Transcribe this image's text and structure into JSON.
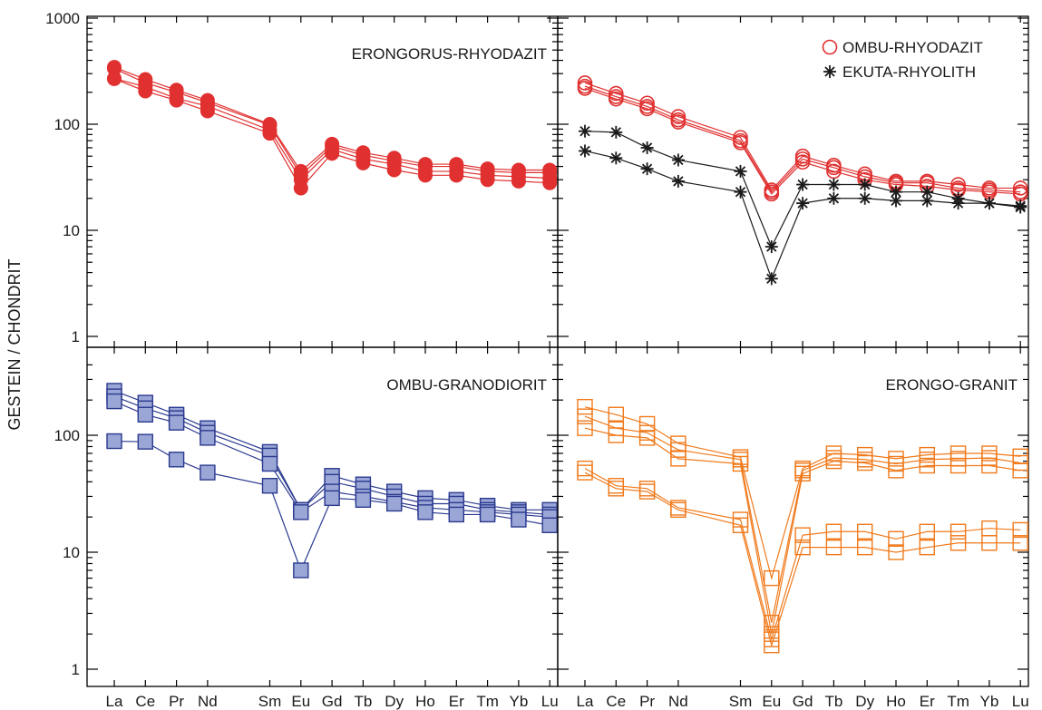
{
  "chart_data": {
    "type": "line",
    "y_axis_label": "GESTEIN / CHONDRIT",
    "y_scale": "log",
    "x_categories": [
      "La",
      "Ce",
      "Pr",
      "Nd",
      "Sm",
      "Eu",
      "Gd",
      "Tb",
      "Dy",
      "Ho",
      "Er",
      "Tm",
      "Yb",
      "Lu"
    ],
    "x_positions": [
      1,
      2,
      3,
      4,
      6,
      7,
      8,
      9,
      10,
      11,
      12,
      13,
      14,
      15
    ],
    "panels": [
      {
        "id": "top-left",
        "title": "ERONGORUS-RHYODAZIT",
        "ylim": [
          0.8,
          1000
        ],
        "y_tick_labels": [
          "1000",
          "100",
          "10",
          "1"
        ],
        "y_tick_values": [
          1000,
          100,
          10,
          1
        ],
        "legend": [],
        "series": [
          {
            "group": "erongorus",
            "values": [
              345,
              265,
              210,
              168,
              100,
              36,
              65,
              54,
              48,
              42,
              42,
              38,
              37,
              37
            ]
          },
          {
            "group": "erongorus",
            "values": [
              335,
              245,
              200,
              160,
              98,
              33,
              62,
              51,
              45,
              40,
              40,
              36,
              35,
              35
            ]
          },
          {
            "group": "erongorus",
            "values": [
              270,
              225,
              175,
              148,
              88,
              30,
              58,
              47,
              42,
              36,
              36,
              33,
              32,
              31
            ]
          },
          {
            "group": "erongorus",
            "values": [
              268,
              205,
              168,
              133,
              82,
              25,
              53,
              43,
              37,
              33,
              33,
              30,
              29,
              28
            ]
          }
        ]
      },
      {
        "id": "top-right",
        "title": "",
        "ylim": [
          0.8,
          1000
        ],
        "y_tick_labels": [],
        "y_tick_values": [
          1000,
          100,
          10,
          1
        ],
        "legend": [
          {
            "label": "OMBU-RHYODAZIT",
            "group": "ombu_rhyo"
          },
          {
            "label": "EKUTA-RHYOLITH",
            "group": "ekuta"
          }
        ],
        "series": [
          {
            "group": "ombu_rhyo",
            "values": [
              245,
              195,
              158,
              118,
              75,
              24,
              50,
              41,
              34,
              29,
              29,
              27,
              25,
              25
            ]
          },
          {
            "group": "ombu_rhyo",
            "values": [
              228,
              182,
              147,
              110,
              70,
              23,
              47,
              39,
              32,
              28,
              28,
              25,
              24,
              23
            ]
          },
          {
            "group": "ombu_rhyo",
            "values": [
              218,
              173,
              140,
              105,
              67,
              22,
              44,
              36,
              30,
              27,
              26,
              24,
              23,
              22
            ]
          },
          {
            "group": "ekuta",
            "values": [
              86,
              84,
              60,
              46,
              36,
              7,
              27,
              27,
              27,
              23,
              23,
              20,
              18,
              17
            ]
          },
          {
            "group": "ekuta",
            "values": [
              56,
              48,
              38,
              29,
              23,
              3.5,
              18,
              20,
              20,
              19,
              19,
              18,
              18,
              16.5
            ]
          }
        ]
      },
      {
        "id": "bottom-left",
        "title": "OMBU-GRANODIORIT",
        "ylim": [
          0.8,
          400
        ],
        "y_tick_labels": [
          "100",
          "10",
          "1"
        ],
        "y_tick_values": [
          100,
          10,
          1
        ],
        "legend": [],
        "series": [
          {
            "group": "ombu_grano",
            "values": [
              240,
              190,
              150,
              115,
              72,
              23,
              45,
              38,
              33,
              29,
              28,
              25,
              23,
              23
            ]
          },
          {
            "group": "ombu_grano",
            "values": [
              215,
              170,
              140,
              105,
              67,
              23,
              40,
              35,
              30,
              26,
              26,
              23,
              22,
              21
            ]
          },
          {
            "group": "ombu_grano",
            "values": [
              195,
              150,
              128,
              95,
              57,
              22,
              33,
              30,
              27,
              24,
              23,
              22,
              21,
              20
            ]
          },
          {
            "group": "ombu_grano",
            "values": [
              89,
              88,
              62,
              48,
              37,
              7,
              29,
              28,
              26,
              22,
              21,
              21,
              19,
              17
            ]
          }
        ]
      },
      {
        "id": "bottom-right",
        "title": "ERONGO-GRANIT",
        "ylim": [
          0.8,
          400
        ],
        "y_tick_labels": [],
        "y_tick_values": [
          100,
          10,
          1
        ],
        "legend": [],
        "series": [
          {
            "group": "erongo",
            "values": [
              175,
              150,
              125,
              85,
              65,
              6,
              52,
              70,
              68,
              63,
              68,
              70,
              70,
              66
            ]
          },
          {
            "group": "erongo",
            "values": [
              145,
              115,
              105,
              75,
              62,
              2.5,
              50,
              64,
              62,
              57,
              62,
              63,
              64,
              58
            ]
          },
          {
            "group": "erongo",
            "values": [
              115,
              100,
              95,
              63,
              57,
              2.0,
              47,
              60,
              58,
              50,
              55,
              55,
              55,
              50
            ]
          },
          {
            "group": "erongo",
            "values": [
              52,
              37,
              35,
              24,
              19,
              1.8,
              14,
              15,
              15,
              13,
              15,
              15,
              16,
              15.5
            ]
          },
          {
            "group": "erongo",
            "values": [
              48,
              35,
              33,
              23,
              17,
              1.6,
              11,
              11,
              11,
              10,
              11,
              12,
              12,
              12
            ]
          }
        ]
      }
    ],
    "styles": {
      "erongorus": {
        "color": "#e03030",
        "marker": "filled-circle"
      },
      "ombu_rhyo": {
        "color": "#e03030",
        "marker": "open-circle"
      },
      "ekuta": {
        "color": "#1a1a1a",
        "marker": "asterisk"
      },
      "ombu_grano": {
        "color": "#2b3a8f",
        "fill": "#9aa6d6",
        "marker": "filled-square"
      },
      "erongo": {
        "color": "#f07a1c",
        "marker": "open-square"
      }
    }
  }
}
